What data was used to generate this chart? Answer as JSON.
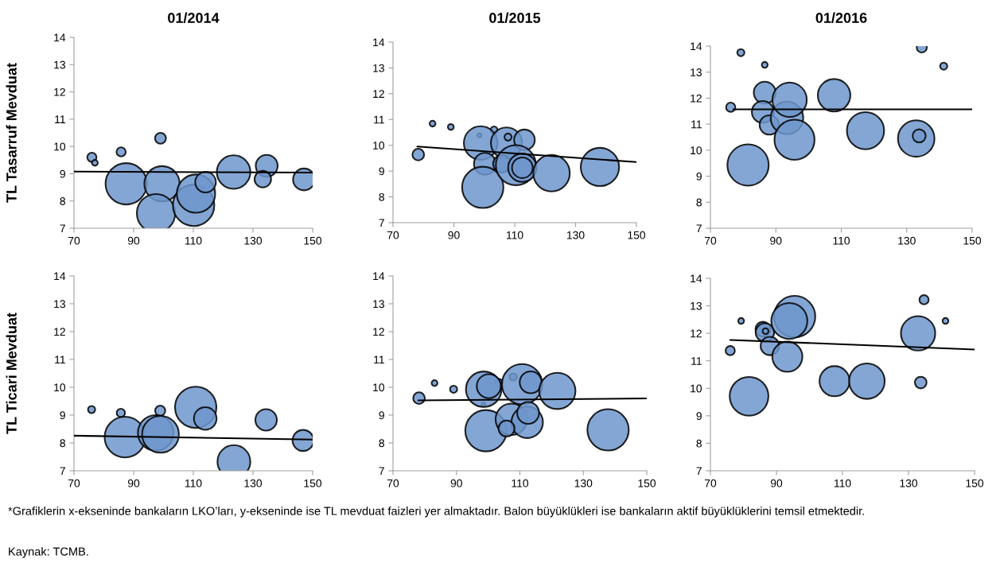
{
  "chart_data": [
    {
      "type": "bubble",
      "title": "01/2014",
      "ylabel": "TL Tasarruf Mevduat",
      "xlim": [
        70,
        150
      ],
      "xticks": [
        70,
        90,
        110,
        130,
        150
      ],
      "ylim": [
        7,
        14
      ],
      "yticks": [
        7,
        8,
        9,
        10,
        11,
        12,
        13,
        14
      ],
      "annotations": [
        "*Grafiklerin x-ekseninde bankaların LKO’ları, y-ekseninde ise TL mevduat faizleri yer almaktadır. Balon büyüklükleri ise bankaların aktif büyüklüklerini temsil etmektedir.",
        "Kaynak: TCMB."
      ],
      "series": [
        {
          "type": "bubble",
          "color": "#6f97cc",
          "x": [
            76,
            77,
            85.8,
            99,
            87.5,
            99.5,
            97.5,
            110.1,
            110.9,
            114.1,
            123.5,
            134.6,
            133.3,
            147.1
          ],
          "values": [
            9.6,
            9.4,
            9.8,
            10.3,
            8.63,
            8.63,
            7.55,
            7.84,
            8.27,
            8.69,
            9.06,
            9.29,
            8.8,
            8.79
          ],
          "sizes": [
            0.05,
            0.02,
            0.05,
            0.07,
            1,
            0.73,
            0.86,
            1,
            0.86,
            0.25,
            0.66,
            0.28,
            0.16,
            0.28
          ]
        },
        {
          "type": "line",
          "color": "#000000",
          "x": [
            70,
            150
          ],
          "values": [
            9.08,
            9.04
          ]
        }
      ]
    },
    {
      "type": "bubble",
      "title": "01/2015",
      "xlim": [
        70,
        150
      ],
      "xticks": [
        70,
        90,
        110,
        130,
        150
      ],
      "ylim": [
        7,
        14
      ],
      "yticks": [
        7,
        8,
        9,
        10,
        11,
        12,
        13,
        14
      ],
      "series": [
        {
          "type": "bubble",
          "color": "#6f97cc",
          "x": [
            78.3,
            83,
            89,
            98.4,
            103.2,
            98.8,
            107.3,
            107.8,
            113.2,
            100.2,
            105.8,
            99.5,
            110.4,
            112.5,
            112.5,
            122.1,
            138
          ],
          "values": [
            9.64,
            10.84,
            10.71,
            10.39,
            10.59,
            10.09,
            10.09,
            10.32,
            10.21,
            9.28,
            9.28,
            8.37,
            9.23,
            9.13,
            9.13,
            8.92,
            9.16
          ],
          "sizes": [
            0.08,
            0.02,
            0.02,
            0.01,
            0.03,
            0.66,
            0.57,
            0.03,
            0.25,
            0.28,
            0.18,
            1,
            0.94,
            0.47,
            0.25,
            0.78,
            0.86
          ]
        },
        {
          "type": "line",
          "color": "#000000",
          "x": [
            78,
            150
          ],
          "values": [
            9.95,
            9.35
          ]
        }
      ]
    },
    {
      "type": "bubble",
      "title": "01/2016",
      "xlim": [
        70,
        150
      ],
      "xticks": [
        70,
        90,
        110,
        130,
        150
      ],
      "ylim": [
        7,
        14
      ],
      "yticks": [
        7,
        8,
        9,
        10,
        11,
        12,
        13,
        14
      ],
      "series": [
        {
          "type": "bubble",
          "color": "#6f97cc",
          "x": [
            79.3,
            86.6,
            134.6,
            141.3,
            76.2,
            86.6,
            86,
            88,
            93.4,
            94.2,
            95.7,
            107.8,
            81.5,
            117.4,
            132.9,
            133.8
          ],
          "values": [
            13.75,
            13.28,
            13.95,
            13.23,
            11.65,
            12.21,
            11.47,
            10.97,
            11.24,
            11.94,
            10.4,
            12.11,
            9.43,
            10.75,
            10.45,
            10.55
          ],
          "sizes": [
            0.03,
            0.02,
            0.06,
            0.03,
            0.05,
            0.28,
            0.28,
            0.22,
            0.62,
            0.69,
            0.94,
            0.62,
            1,
            0.81,
            0.78,
            0.1
          ]
        },
        {
          "type": "line",
          "color": "#000000",
          "x": [
            77,
            150
          ],
          "values": [
            11.57,
            11.57
          ]
        }
      ]
    },
    {
      "type": "bubble",
      "ylabel": "TL Ticari Mevduat",
      "xlim": [
        70,
        150
      ],
      "xticks": [
        70,
        90,
        110,
        130,
        150
      ],
      "ylim": [
        7,
        14
      ],
      "yticks": [
        7,
        8,
        9,
        10,
        11,
        12,
        13,
        14
      ],
      "series": [
        {
          "type": "bubble",
          "color": "#6f97cc",
          "x": [
            75.9,
            85.7,
            98.9,
            110.8,
            114,
            134.4,
            87.1,
            97.4,
            99,
            123.6,
            146.8
          ],
          "values": [
            9.2,
            9.08,
            9.16,
            9.28,
            8.88,
            8.83,
            8.21,
            8.36,
            8.31,
            7.33,
            8.09
          ],
          "sizes": [
            0.03,
            0.04,
            0.06,
            1,
            0.3,
            0.27,
            0.97,
            0.74,
            0.79,
            0.63,
            0.26
          ]
        },
        {
          "type": "line",
          "color": "#000000",
          "x": [
            70,
            150
          ],
          "values": [
            8.26,
            8.12
          ]
        }
      ]
    },
    {
      "type": "bubble",
      "xlim": [
        70,
        150
      ],
      "xticks": [
        70,
        90,
        110,
        130,
        150
      ],
      "ylim": [
        7,
        14
      ],
      "yticks": [
        7,
        8,
        9,
        10,
        11,
        12,
        13,
        14
      ],
      "series": [
        {
          "type": "bubble",
          "color": "#6f97cc",
          "x": [
            78.2,
            83.1,
            89.1,
            98.5,
            103.3,
            107.9,
            98.6,
            100.2,
            110.7,
            113.4,
            121.8,
            99.3,
            107.3,
            112.3,
            112.6,
            105.8,
            137.8
          ],
          "values": [
            9.61,
            10.15,
            9.93,
            9.38,
            10.18,
            10.37,
            9.93,
            10.04,
            10.11,
            10.18,
            9.87,
            8.44,
            8.85,
            8.74,
            9.08,
            8.52,
            8.47
          ],
          "sizes": [
            0.08,
            0.02,
            0.03,
            0.01,
            0.03,
            0.03,
            0.74,
            0.34,
            0.95,
            0.28,
            0.77,
            1,
            0.58,
            0.58,
            0.28,
            0.15,
            1
          ]
        },
        {
          "type": "line",
          "color": "#000000",
          "x": [
            78,
            150
          ],
          "values": [
            9.53,
            9.6
          ]
        }
      ]
    },
    {
      "type": "bubble",
      "xlim": [
        70,
        150
      ],
      "xticks": [
        70,
        90,
        110,
        130,
        150
      ],
      "ylim": [
        7,
        14
      ],
      "yticks": [
        7,
        8,
        9,
        10,
        11,
        12,
        13,
        14
      ],
      "series": [
        {
          "type": "bubble",
          "color": "#6f97cc",
          "x": [
            76,
            79.3,
            141.2,
            134.7,
            85.9,
            86.5,
            86.7,
            88,
            95.5,
            93.9,
            93.3,
            81.7,
            107.6,
            117.4,
            132.9,
            133.7
          ],
          "values": [
            11.37,
            12.45,
            12.45,
            13.22,
            12.15,
            12.03,
            12.08,
            11.54,
            12.61,
            12.45,
            11.15,
            9.71,
            10.26,
            10.26,
            12,
            10.21
          ],
          "sizes": [
            0.05,
            0.02,
            0.02,
            0.05,
            0.13,
            0.2,
            0.02,
            0.2,
            1,
            0.76,
            0.53,
            0.88,
            0.53,
            0.74,
            0.69,
            0.08
          ]
        },
        {
          "type": "line",
          "color": "#000000",
          "x": [
            76,
            150
          ],
          "values": [
            11.76,
            11.41
          ]
        }
      ]
    }
  ]
}
